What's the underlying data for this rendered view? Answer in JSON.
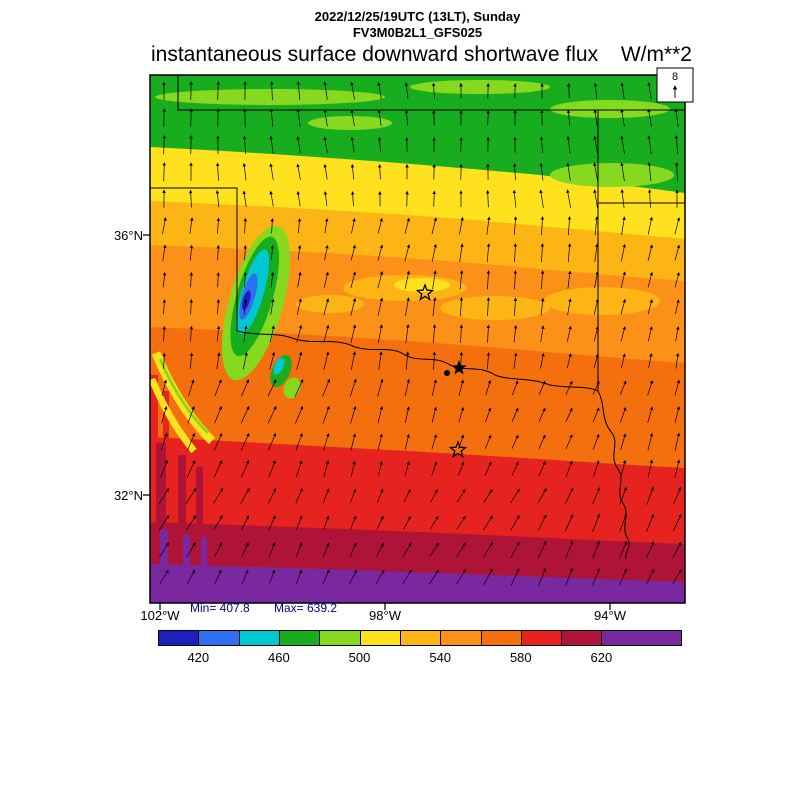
{
  "header": {
    "datetime": "2022/12/25/19UTC (13LT), Sunday",
    "model": "FV3M0B2L1_GFS025"
  },
  "title": "instantaneous surface downward shortwave flux",
  "units": "W/m**2",
  "reference_arrow": {
    "value": "8"
  },
  "stats": {
    "min": "Min= 407.8",
    "max": "Max= 639.2",
    "color": "#00008b"
  },
  "axes": {
    "lat": [
      "36°N",
      "32°N"
    ],
    "lon": [
      "102°W",
      "98°W",
      "94°W"
    ]
  },
  "colorbar": {
    "tick_labels": [
      "420",
      "460",
      "500",
      "540",
      "580",
      "620"
    ],
    "segments": [
      {
        "from": 400,
        "to": 420,
        "color": "#1f1fbe"
      },
      {
        "from": 420,
        "to": 440,
        "color": "#2f6ff0"
      },
      {
        "from": 440,
        "to": 460,
        "color": "#00c8d2"
      },
      {
        "from": 460,
        "to": 480,
        "color": "#18ad1e"
      },
      {
        "from": 480,
        "to": 500,
        "color": "#86d91e"
      },
      {
        "from": 500,
        "to": 520,
        "color": "#ffe11e"
      },
      {
        "from": 520,
        "to": 540,
        "color": "#fcb514"
      },
      {
        "from": 540,
        "to": 560,
        "color": "#fb9118"
      },
      {
        "from": 560,
        "to": 580,
        "color": "#f4700e"
      },
      {
        "from": 580,
        "to": 600,
        "color": "#e6231e"
      },
      {
        "from": 600,
        "to": 620,
        "color": "#b01338"
      },
      {
        "from": 620,
        "to": 640,
        "color": "#7a28a0"
      }
    ]
  },
  "chart_data": {
    "type": "heatmap",
    "title": "instantaneous surface downward shortwave flux",
    "valid_time": "2022/12/25/19UTC (13LT), Sunday",
    "model": "FV3M0B2L1_GFS025",
    "units": "W/m**2",
    "min": 407.8,
    "max": 639.2,
    "colorbar_ticks": [
      420,
      460,
      500,
      540,
      580,
      620
    ],
    "colorbar_range": [
      400,
      640
    ],
    "lat_tick_labels": [
      "36°N",
      "32°N"
    ],
    "lon_tick_labels": [
      "102°W",
      "98°W",
      "94°W"
    ],
    "wind_reference_value": 8,
    "wind_description": "southerly flow; arrows point north over most of the domain, veering north-northeast toward the southern edge",
    "gradient_by_latitude": [
      {
        "lat": "38N",
        "flux": 490
      },
      {
        "lat": "37N",
        "flux": 505
      },
      {
        "lat": "36N",
        "flux": 525
      },
      {
        "lat": "35N",
        "flux": 550
      },
      {
        "lat": "34N",
        "flux": 570
      },
      {
        "lat": "33N",
        "flux": 590
      },
      {
        "lat": "32N",
        "flux": 605
      },
      {
        "lat": "31N",
        "flux": 628
      }
    ],
    "features": [
      {
        "name": "cloud-minimum-blob",
        "approx_location": "35N 101.5W",
        "flux": 410
      },
      {
        "name": "open-star-marker",
        "approx_location": "35.1N 97.4W"
      },
      {
        "name": "open-star-marker",
        "approx_location": "32.7N 96.7W"
      },
      {
        "name": "filled-star-lake-marker",
        "approx_location": "33.9N 96.7W"
      }
    ]
  }
}
